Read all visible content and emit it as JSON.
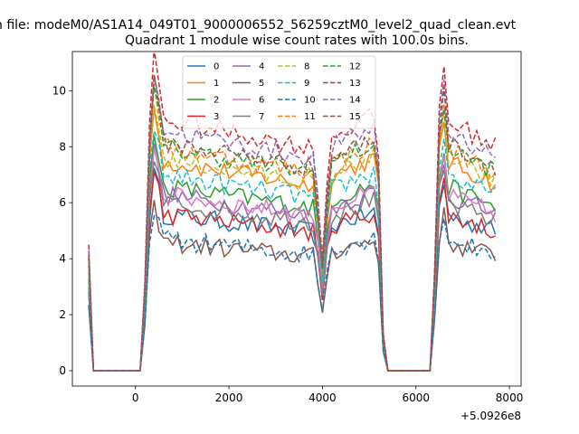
{
  "figure": {
    "suptitle": "n file: modeM0/AS1A14_049T01_9000006552_56259cztM0_level2_quad_clean.evt"
  },
  "chart_data": {
    "type": "line",
    "title": "Quadrant 1 module wise count rates with 100.0s bins.",
    "xlabel": "",
    "ylabel": "",
    "offset_label": "+5.0926e8",
    "xlim": [
      -1350,
      8250
    ],
    "ylim": [
      -0.55,
      11.4
    ],
    "xticks": [
      0,
      2000,
      4000,
      6000,
      8000
    ],
    "xtick_labels": [
      "0",
      "2000",
      "4000",
      "6000",
      "8000"
    ],
    "yticks": [
      0,
      2,
      4,
      6,
      8,
      10
    ],
    "ytick_labels": [
      "0",
      "2",
      "4",
      "6",
      "8",
      "10"
    ],
    "grid": false,
    "legend_position": "upper center",
    "legend_columns": 4,
    "series": [
      {
        "name": "0",
        "color": "#1f77b4",
        "dash": "solid",
        "base": 5.6
      },
      {
        "name": "1",
        "color": "#ff7f0e",
        "dash": "solid",
        "base": 7.5
      },
      {
        "name": "2",
        "color": "#2ca02c",
        "dash": "solid",
        "base": 6.6
      },
      {
        "name": "3",
        "color": "#d62728",
        "dash": "solid",
        "base": 5.6
      },
      {
        "name": "4",
        "color": "#9467bd",
        "dash": "solid",
        "base": 6.3
      },
      {
        "name": "5",
        "color": "#8c564b",
        "dash": "solid",
        "base": 4.6
      },
      {
        "name": "6",
        "color": "#e377c2",
        "dash": "solid",
        "base": 6.3
      },
      {
        "name": "7",
        "color": "#7f7f7f",
        "dash": "solid",
        "base": 6.0
      },
      {
        "name": "8",
        "color": "#bcbd22",
        "dash": "dashed",
        "base": 7.6
      },
      {
        "name": "9",
        "color": "#17becf",
        "dash": "dashed",
        "base": 7.0
      },
      {
        "name": "10",
        "color": "#1f77b4",
        "dash": "dashed",
        "base": 4.7
      },
      {
        "name": "11",
        "color": "#ff7f0e",
        "dash": "dashed",
        "base": 8.0
      },
      {
        "name": "12",
        "color": "#2ca02c",
        "dash": "dashed",
        "base": 8.0
      },
      {
        "name": "13",
        "color": "#d62728",
        "dash": "dashed",
        "base": 9.0
      },
      {
        "name": "14",
        "color": "#9467bd",
        "dash": "dashed",
        "base": 8.6
      },
      {
        "name": "15",
        "color": "#8c564b",
        "dash": "dashed",
        "base": 8.2
      }
    ],
    "profile": {
      "x_start": -1000,
      "x_step": 100,
      "x_count": 88,
      "zero_ranges": [
        [
          -900,
          100
        ],
        [
          5400,
          6300
        ]
      ],
      "first_point_factor": 0.5,
      "rise_points": [
        [
          200,
          0.35
        ],
        [
          300,
          1.0
        ],
        [
          400,
          1.25
        ],
        [
          500,
          1.15
        ]
      ],
      "dip_points": [
        [
          3900,
          0.7
        ],
        [
          4000,
          0.45
        ],
        [
          4100,
          0.75
        ]
      ],
      "drop_points": [
        [
          5200,
          0.85
        ],
        [
          5300,
          0.15
        ]
      ],
      "second_rise_points": [
        [
          6400,
          0.4
        ],
        [
          6500,
          1.05
        ],
        [
          6600,
          1.2
        ]
      ],
      "end_points": [
        [
          7800,
          0.15
        ]
      ]
    }
  }
}
